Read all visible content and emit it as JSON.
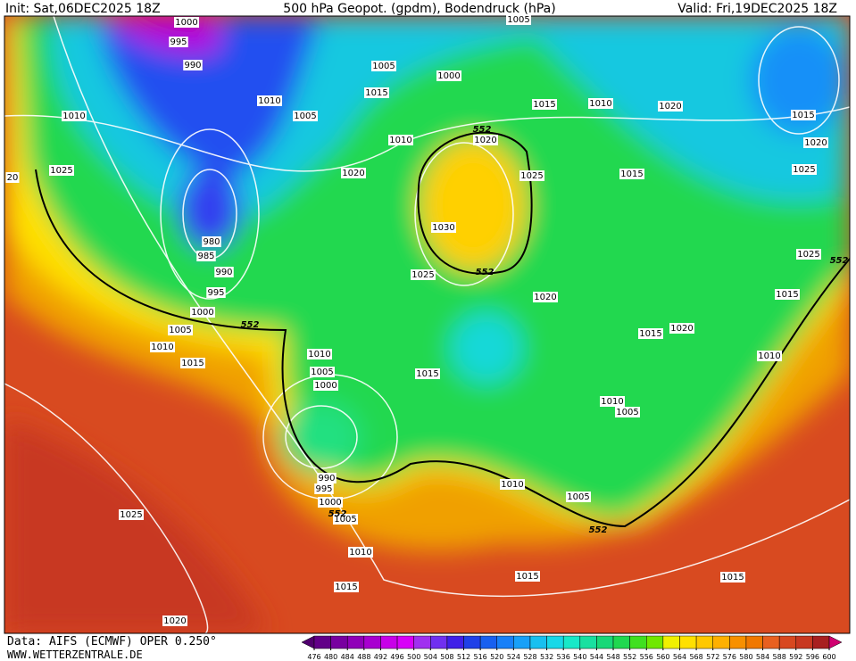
{
  "header": {
    "init": "Init: Sat,06DEC2025 18Z",
    "title": "500 hPa Geopot. (gpdm), Bodendruck (hPa)",
    "valid": "Valid: Fri,19DEC2025 18Z"
  },
  "isobar_labels": [
    "1000",
    "995",
    "990",
    "1010",
    "1005",
    "1010",
    "1025",
    "20",
    "980",
    "985",
    "990",
    "995",
    "1000",
    "1005",
    "1010",
    "1015",
    "1005",
    "1015",
    "1010",
    "1020",
    "1000",
    "1005",
    "1015",
    "1010",
    "1020",
    "1015",
    "1020",
    "1025",
    "1015",
    "1025",
    "1020",
    "1030",
    "1025",
    "1020",
    "1025",
    "1015",
    "1015",
    "1020",
    "1010",
    "1010",
    "1005",
    "1000",
    "1015",
    "1010",
    "1005",
    "990",
    "995",
    "1000",
    "1005",
    "1010",
    "1005",
    "1010",
    "1015",
    "1015",
    "1015",
    "1025",
    "1020"
  ],
  "contour_552_labels": [
    "552",
    "552",
    "552",
    "552",
    "552",
    "552"
  ],
  "colorbar": {
    "ticks": [
      476,
      480,
      484,
      488,
      492,
      496,
      500,
      504,
      508,
      512,
      516,
      520,
      524,
      528,
      532,
      536,
      540,
      544,
      548,
      552,
      556,
      560,
      564,
      568,
      572,
      576,
      580,
      584,
      588,
      592,
      596,
      600
    ],
    "colors": [
      "#50006e",
      "#620088",
      "#7800a0",
      "#9000b8",
      "#a800d0",
      "#c800e8",
      "#d800f8",
      "#a030f0",
      "#7030f0",
      "#4020e8",
      "#2040e8",
      "#1860f0",
      "#1880f8",
      "#18a0f8",
      "#18c0f0",
      "#18d8e8",
      "#18e8c8",
      "#18e0a0",
      "#18d878",
      "#20d850",
      "#40e020",
      "#70e800",
      "#f0f000",
      "#ffe000",
      "#ffc800",
      "#ffb000",
      "#f89000",
      "#f07800",
      "#e86020",
      "#d84820",
      "#c83820",
      "#a82020",
      "#d00070"
    ]
  },
  "footer": {
    "source": "Data: AIFS (ECMWF) OPER 0.250°",
    "site": "WWW.WETTERZENTRALE.DE"
  }
}
